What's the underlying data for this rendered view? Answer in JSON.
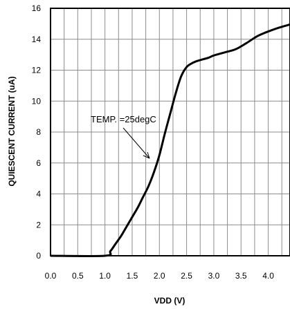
{
  "chart_data": {
    "type": "line",
    "title": "",
    "xlabel": "VDD (V)",
    "ylabel": "QUIESCENT CURRENT (uA)",
    "xlim": [
      0,
      4.4
    ],
    "ylim": [
      0,
      16
    ],
    "x_ticks": [
      "0.0",
      "0.5",
      "1.0",
      "1.5",
      "2.0",
      "2.5",
      "3.0",
      "3.5",
      "4.0"
    ],
    "y_ticks": [
      "0",
      "2",
      "4",
      "6",
      "8",
      "10",
      "12",
      "14",
      "16"
    ],
    "grid": true,
    "legend": "none",
    "annotation": "TEMP. =25degC",
    "series": [
      {
        "x": [
          0.0,
          1.0,
          1.1,
          1.2,
          1.3,
          1.4,
          1.5,
          1.6,
          1.7,
          1.8,
          1.9,
          2.0,
          2.1,
          2.2,
          2.3,
          2.4,
          2.5,
          2.6,
          2.7,
          2.8,
          2.9,
          3.0,
          3.2,
          3.4,
          3.6,
          3.8,
          4.0,
          4.2,
          4.4
        ],
        "y": [
          0.0,
          0.0,
          0.3,
          0.8,
          1.3,
          1.9,
          2.5,
          3.1,
          3.8,
          4.5,
          5.4,
          6.5,
          7.9,
          9.2,
          10.5,
          11.6,
          12.2,
          12.45,
          12.6,
          12.7,
          12.8,
          12.95,
          13.15,
          13.35,
          13.75,
          14.2,
          14.5,
          14.75,
          14.95
        ]
      }
    ]
  }
}
